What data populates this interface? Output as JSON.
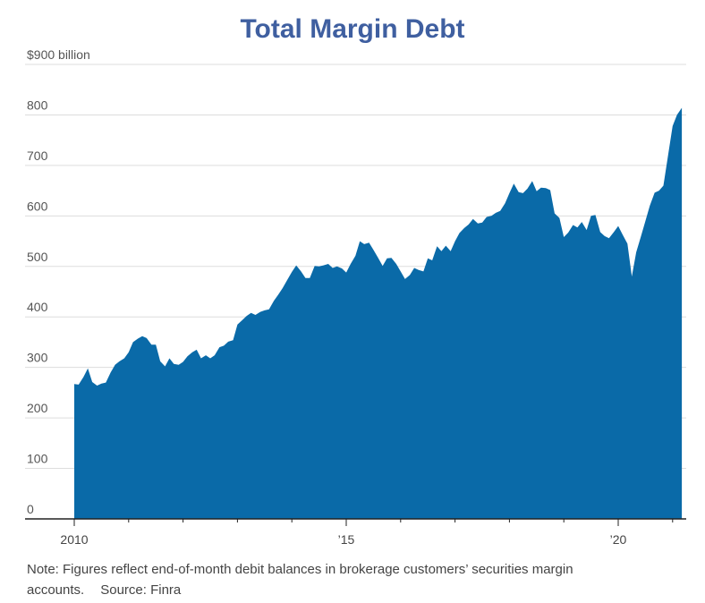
{
  "chart_data": {
    "type": "area",
    "title": "Total Margin Debt",
    "xlabel": "",
    "ylabel": "",
    "ylim": [
      0,
      900
    ],
    "xlim": [
      2010.0,
      2021.25
    ],
    "y_ticks": [
      {
        "value": 900,
        "label": "$900 billion"
      },
      {
        "value": 800,
        "label": "800"
      },
      {
        "value": 700,
        "label": "700"
      },
      {
        "value": 600,
        "label": "600"
      },
      {
        "value": 500,
        "label": "500"
      },
      {
        "value": 400,
        "label": "400"
      },
      {
        "value": 300,
        "label": "300"
      },
      {
        "value": 200,
        "label": "200"
      },
      {
        "value": 100,
        "label": "100"
      },
      {
        "value": 0,
        "label": "0"
      }
    ],
    "x_ticks": [
      {
        "value": 2010,
        "label": "2010"
      },
      {
        "value": 2015,
        "label": "’15"
      },
      {
        "value": 2020,
        "label": "’20"
      }
    ],
    "x_minor_ticks": [
      2011,
      2012,
      2013,
      2014,
      2016,
      2017,
      2018,
      2019,
      2021
    ],
    "grid": true,
    "color": "#0a6aa8",
    "series": [
      {
        "name": "",
        "points": [
          [
            2010.0,
            267
          ],
          [
            2010.08,
            266
          ],
          [
            2010.17,
            281
          ],
          [
            2010.25,
            298
          ],
          [
            2010.33,
            271
          ],
          [
            2010.42,
            264
          ],
          [
            2010.5,
            268
          ],
          [
            2010.58,
            270
          ],
          [
            2010.67,
            290
          ],
          [
            2010.75,
            305
          ],
          [
            2010.83,
            312
          ],
          [
            2010.92,
            318
          ],
          [
            2011.0,
            330
          ],
          [
            2011.08,
            350
          ],
          [
            2011.17,
            357
          ],
          [
            2011.25,
            362
          ],
          [
            2011.33,
            358
          ],
          [
            2011.42,
            345
          ],
          [
            2011.5,
            345
          ],
          [
            2011.58,
            312
          ],
          [
            2011.67,
            302
          ],
          [
            2011.75,
            318
          ],
          [
            2011.83,
            307
          ],
          [
            2011.92,
            305
          ],
          [
            2012.0,
            311
          ],
          [
            2012.08,
            322
          ],
          [
            2012.17,
            330
          ],
          [
            2012.25,
            335
          ],
          [
            2012.33,
            318
          ],
          [
            2012.42,
            324
          ],
          [
            2012.5,
            318
          ],
          [
            2012.58,
            324
          ],
          [
            2012.67,
            340
          ],
          [
            2012.75,
            343
          ],
          [
            2012.83,
            351
          ],
          [
            2012.92,
            354
          ],
          [
            2013.0,
            385
          ],
          [
            2013.08,
            393
          ],
          [
            2013.17,
            402
          ],
          [
            2013.25,
            408
          ],
          [
            2013.33,
            404
          ],
          [
            2013.42,
            410
          ],
          [
            2013.5,
            413
          ],
          [
            2013.58,
            415
          ],
          [
            2013.67,
            432
          ],
          [
            2013.75,
            444
          ],
          [
            2013.83,
            457
          ],
          [
            2013.92,
            474
          ],
          [
            2014.0,
            489
          ],
          [
            2014.08,
            502
          ],
          [
            2014.17,
            490
          ],
          [
            2014.25,
            477
          ],
          [
            2014.33,
            477
          ],
          [
            2014.42,
            501
          ],
          [
            2014.5,
            500
          ],
          [
            2014.58,
            502
          ],
          [
            2014.67,
            505
          ],
          [
            2014.75,
            497
          ],
          [
            2014.83,
            500
          ],
          [
            2014.92,
            496
          ],
          [
            2015.0,
            488
          ],
          [
            2015.08,
            505
          ],
          [
            2015.17,
            521
          ],
          [
            2015.25,
            550
          ],
          [
            2015.33,
            544
          ],
          [
            2015.42,
            547
          ],
          [
            2015.5,
            533
          ],
          [
            2015.58,
            518
          ],
          [
            2015.67,
            501
          ],
          [
            2015.75,
            516
          ],
          [
            2015.83,
            517
          ],
          [
            2015.92,
            505
          ],
          [
            2016.0,
            490
          ],
          [
            2016.08,
            475
          ],
          [
            2016.17,
            483
          ],
          [
            2016.25,
            497
          ],
          [
            2016.33,
            493
          ],
          [
            2016.42,
            490
          ],
          [
            2016.5,
            516
          ],
          [
            2016.58,
            512
          ],
          [
            2016.67,
            540
          ],
          [
            2016.75,
            530
          ],
          [
            2016.83,
            541
          ],
          [
            2016.92,
            530
          ],
          [
            2017.0,
            550
          ],
          [
            2017.08,
            566
          ],
          [
            2017.17,
            576
          ],
          [
            2017.25,
            583
          ],
          [
            2017.33,
            594
          ],
          [
            2017.42,
            585
          ],
          [
            2017.5,
            587
          ],
          [
            2017.58,
            598
          ],
          [
            2017.67,
            600
          ],
          [
            2017.75,
            606
          ],
          [
            2017.83,
            610
          ],
          [
            2017.92,
            625
          ],
          [
            2018.0,
            645
          ],
          [
            2018.08,
            664
          ],
          [
            2018.17,
            647
          ],
          [
            2018.25,
            645
          ],
          [
            2018.33,
            654
          ],
          [
            2018.42,
            669
          ],
          [
            2018.5,
            649
          ],
          [
            2018.58,
            656
          ],
          [
            2018.67,
            655
          ],
          [
            2018.75,
            651
          ],
          [
            2018.83,
            605
          ],
          [
            2018.92,
            596
          ],
          [
            2019.0,
            558
          ],
          [
            2019.08,
            567
          ],
          [
            2019.17,
            582
          ],
          [
            2019.25,
            577
          ],
          [
            2019.33,
            588
          ],
          [
            2019.42,
            572
          ],
          [
            2019.5,
            600
          ],
          [
            2019.58,
            602
          ],
          [
            2019.67,
            568
          ],
          [
            2019.75,
            560
          ],
          [
            2019.83,
            556
          ],
          [
            2019.92,
            568
          ],
          [
            2020.0,
            580
          ],
          [
            2020.08,
            563
          ],
          [
            2020.17,
            545
          ],
          [
            2020.25,
            480
          ],
          [
            2020.33,
            528
          ],
          [
            2020.42,
            560
          ],
          [
            2020.5,
            590
          ],
          [
            2020.58,
            620
          ],
          [
            2020.67,
            646
          ],
          [
            2020.75,
            650
          ],
          [
            2020.83,
            660
          ],
          [
            2020.92,
            722
          ],
          [
            2021.0,
            778
          ],
          [
            2021.08,
            800
          ],
          [
            2021.17,
            814
          ]
        ]
      }
    ]
  },
  "footer": {
    "note": "Note: Figures reflect end-of-month debit balances in brokerage customers’ securities margin accounts.",
    "source": "Source: Finra"
  }
}
